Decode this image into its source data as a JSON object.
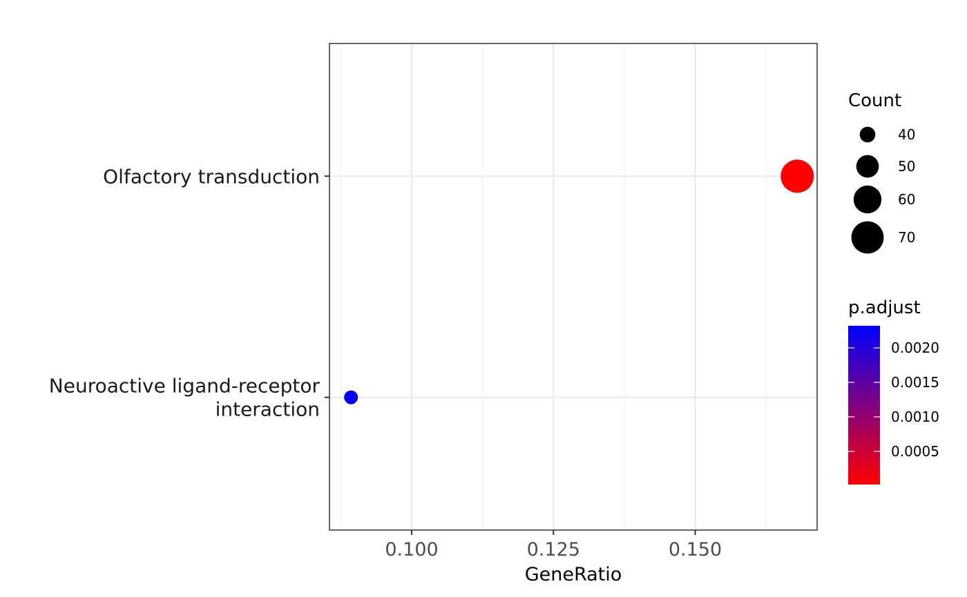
{
  "chart_data": {
    "type": "scatter",
    "xlabel": "GeneRatio",
    "ylabel": "",
    "categories": [
      "Neuroactive ligand-receptor interaction",
      "Olfactory transduction"
    ],
    "category_label_lines": [
      [
        "Neuroactive ligand-receptor",
        "interaction"
      ],
      [
        "Olfactory transduction"
      ]
    ],
    "xlim": [
      0.0855,
      0.1715
    ],
    "xticks": [
      0.1,
      0.125,
      0.15
    ],
    "xtick_labels": [
      "0.100",
      "0.125",
      "0.150"
    ],
    "x_minor_ticks": [
      0.0875,
      0.1125,
      0.1375,
      0.1625
    ],
    "points": [
      {
        "category": "Olfactory transduction",
        "x": 0.168,
        "count": 72,
        "p_adjust": 2e-05
      },
      {
        "category": "Neuroactive ligand-receptor interaction",
        "x": 0.0893,
        "count": 38,
        "p_adjust": 0.00232
      }
    ],
    "grid": true,
    "legend_position": "right",
    "size_legend": {
      "title": "Count",
      "values": [
        40,
        50,
        60,
        70
      ],
      "labels": [
        "40",
        "50",
        "60",
        "70"
      ]
    },
    "color_legend": {
      "title": "p.adjust",
      "low_color": "#ff0000",
      "high_color": "#0000ff",
      "range": [
        2e-05,
        0.00232
      ],
      "ticks": [
        0.0005,
        0.001,
        0.0015,
        0.002
      ],
      "tick_labels": [
        "0.0005",
        "0.0010",
        "0.0015",
        "0.0020"
      ]
    }
  }
}
